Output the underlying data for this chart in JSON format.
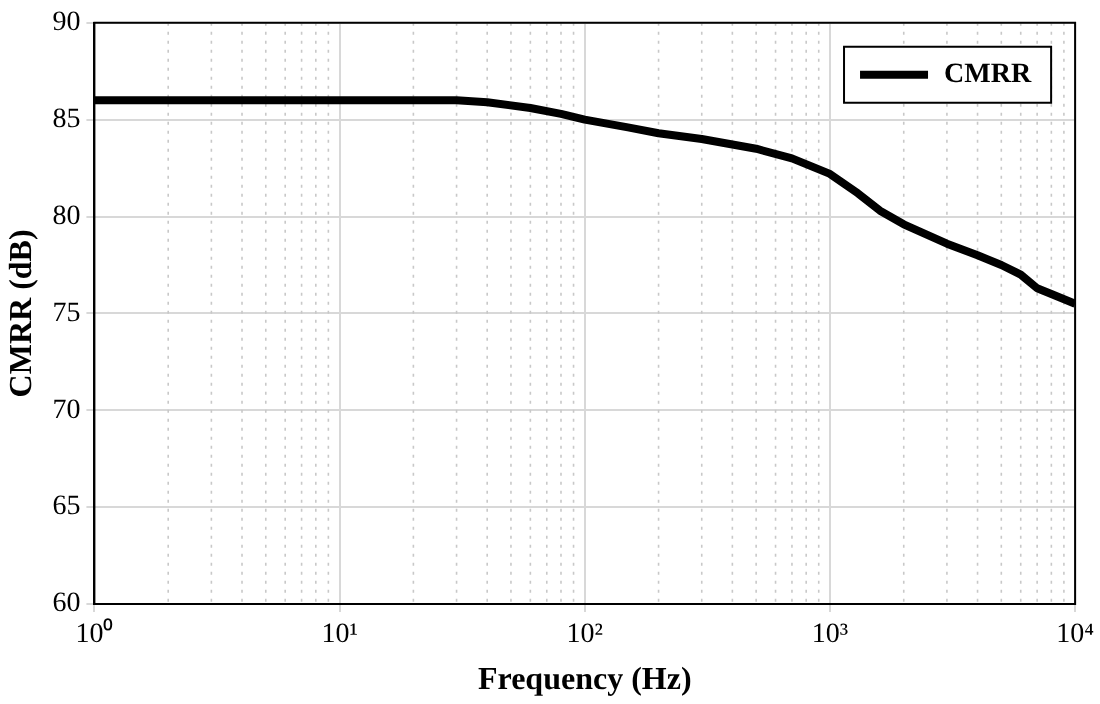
{
  "chart_data": {
    "type": "line",
    "xlabel": "Frequency (Hz)",
    "ylabel": "CMRR (dB)",
    "log": "x",
    "x": [
      1,
      3,
      10,
      20,
      30,
      40,
      60,
      80,
      100,
      150,
      200,
      300,
      500,
      700,
      1000,
      1300,
      1600,
      2000,
      3000,
      4000,
      5000,
      6000,
      7000,
      8000,
      10000
    ],
    "series": [
      {
        "name": "CMRR",
        "color": "#000000",
        "values": [
          86,
          86,
          86,
          86,
          86,
          85.9,
          85.6,
          85.3,
          85,
          84.6,
          84.3,
          84,
          83.5,
          83,
          82.2,
          81.2,
          80.3,
          79.6,
          78.6,
          78,
          77.5,
          77,
          76.3,
          76,
          75.5
        ]
      }
    ],
    "xlim": [
      1,
      10000
    ],
    "xticks": [
      {
        "value": 1,
        "label": "10⁰"
      },
      {
        "value": 10,
        "label": "10¹"
      },
      {
        "value": 100,
        "label": "10²"
      },
      {
        "value": 1000,
        "label": "10³"
      },
      {
        "value": 10000,
        "label": "10⁴"
      }
    ],
    "ylim": [
      60,
      90
    ],
    "yticks": [
      60,
      65,
      70,
      75,
      80,
      85,
      90
    ],
    "grid": true,
    "legend": "top right",
    "line_style": "solid",
    "marker": "none"
  }
}
